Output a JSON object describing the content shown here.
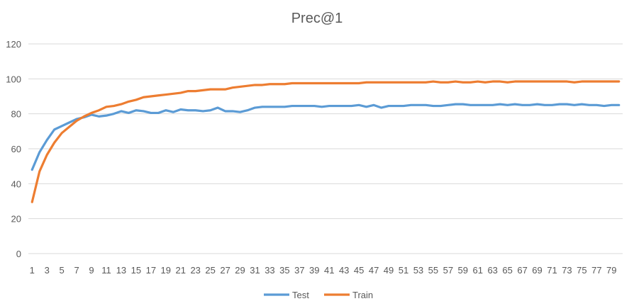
{
  "chart_data": {
    "type": "line",
    "title": "Prec@1",
    "xlabel": "",
    "ylabel": "",
    "ylim": [
      0,
      120
    ],
    "yticks": [
      0,
      20,
      40,
      60,
      80,
      100,
      120
    ],
    "x": [
      1,
      2,
      3,
      4,
      5,
      6,
      7,
      8,
      9,
      10,
      11,
      12,
      13,
      14,
      15,
      16,
      17,
      18,
      19,
      20,
      21,
      22,
      23,
      24,
      25,
      26,
      27,
      28,
      29,
      30,
      31,
      32,
      33,
      34,
      35,
      36,
      37,
      38,
      39,
      40,
      41,
      42,
      43,
      44,
      45,
      46,
      47,
      48,
      49,
      50,
      51,
      52,
      53,
      54,
      55,
      56,
      57,
      58,
      59,
      60,
      61,
      62,
      63,
      64,
      65,
      66,
      67,
      68,
      69,
      70,
      71,
      72,
      73,
      74,
      75,
      76,
      77,
      78,
      79,
      80
    ],
    "xtick_labels": [
      "1",
      "3",
      "5",
      "7",
      "9",
      "11",
      "13",
      "15",
      "17",
      "19",
      "21",
      "23",
      "25",
      "27",
      "29",
      "31",
      "33",
      "35",
      "37",
      "39",
      "41",
      "43",
      "45",
      "47",
      "49",
      "51",
      "53",
      "55",
      "57",
      "59",
      "61",
      "63",
      "65",
      "67",
      "69",
      "71",
      "73",
      "75",
      "77",
      "79"
    ],
    "grid": true,
    "legend_position": "bottom",
    "series": [
      {
        "name": "Test",
        "color": "#5B9BD5",
        "values": [
          48,
          58,
          65,
          71,
          73,
          75,
          77,
          78,
          79.5,
          78.5,
          79,
          80,
          81.5,
          80.5,
          82,
          81.5,
          80.5,
          80.5,
          82,
          81,
          82.5,
          82,
          82,
          81.5,
          82,
          83.5,
          81.5,
          81.5,
          81,
          82,
          83.5,
          84,
          84,
          84,
          84,
          84.5,
          84.5,
          84.5,
          84.5,
          84,
          84.5,
          84.5,
          84.5,
          84.5,
          85,
          84,
          85,
          83.5,
          84.5,
          84.5,
          84.5,
          85,
          85,
          85,
          84.5,
          84.5,
          85,
          85.5,
          85.5,
          85,
          85,
          85,
          85,
          85.5,
          85,
          85.5,
          85,
          85,
          85.5,
          85,
          85,
          85.5,
          85.5,
          85,
          85.5,
          85,
          85,
          84.5,
          85,
          85
        ]
      },
      {
        "name": "Train",
        "color": "#ED7D31",
        "values": [
          29.5,
          47,
          56.5,
          63.5,
          69,
          72.5,
          76,
          78.5,
          80.5,
          82,
          84,
          84.5,
          85.5,
          87,
          88,
          89.5,
          90,
          90.5,
          91,
          91.5,
          92,
          93,
          93,
          93.5,
          94,
          94,
          94,
          95,
          95.5,
          96,
          96.5,
          96.5,
          97,
          97,
          97,
          97.5,
          97.5,
          97.5,
          97.5,
          97.5,
          97.5,
          97.5,
          97.5,
          97.5,
          97.5,
          98,
          98,
          98,
          98,
          98,
          98,
          98,
          98,
          98,
          98.5,
          98,
          98,
          98.5,
          98,
          98,
          98.5,
          98,
          98.5,
          98.5,
          98,
          98.5,
          98.5,
          98.5,
          98.5,
          98.5,
          98.5,
          98.5,
          98.5,
          98,
          98.5,
          98.5,
          98.5,
          98.5,
          98.5,
          98.5
        ]
      }
    ]
  }
}
